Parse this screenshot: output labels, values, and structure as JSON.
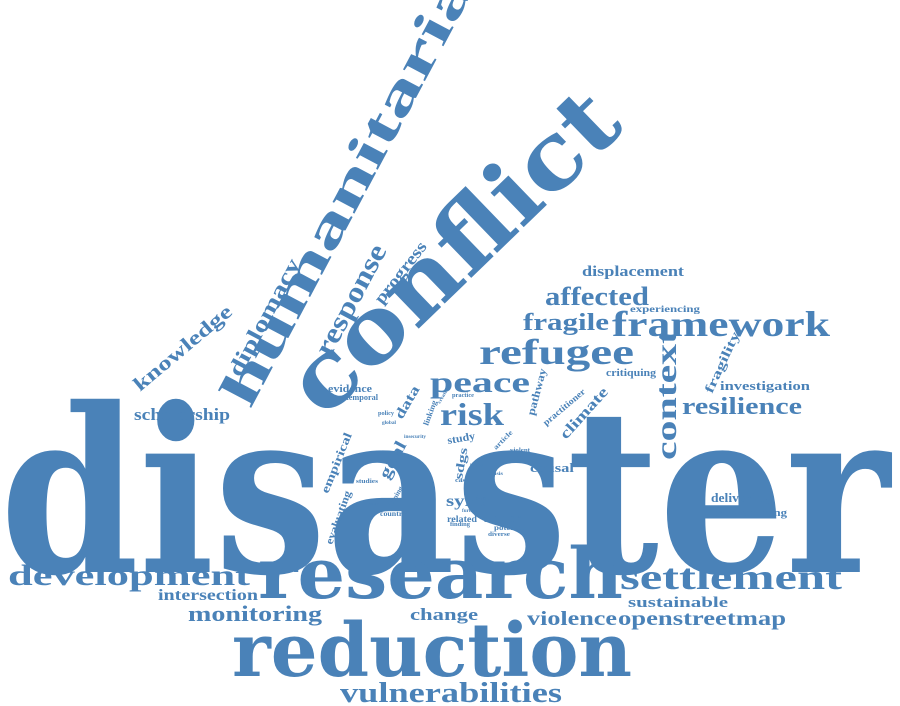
{
  "accent_color": "#4a82b8",
  "words": {
    "disaster": "disaster",
    "conflict": "conflict",
    "humanitarian": "humanitarian",
    "research": "research",
    "reduction": "reduction",
    "framework": "framework",
    "refugee": "refugee",
    "settlement": "settlement",
    "development": "development",
    "vulnerabilities": "vulnerabilities",
    "context": "context",
    "resilience": "resilience",
    "risk": "risk",
    "peace": "peace",
    "affected": "affected",
    "fragile": "fragile",
    "response": "response",
    "diplomacy": "diplomacy",
    "knowledge": "knowledge",
    "progress": "progress",
    "displacement": "displacement",
    "scholarship": "scholarship",
    "monitoring": "monitoring",
    "intersection": "intersection",
    "change": "change",
    "violence": "violence",
    "openstreetmap": "openstreetmap",
    "sustainable": "sustainable",
    "delivering": "delivering",
    "programming": "programming",
    "investigation": "investigation",
    "fragility": "fragility",
    "critiquing": "critiquing",
    "experiencing": "experiencing",
    "climate": "climate",
    "causal": "causal",
    "syria": "syria",
    "unhcr": "unhcr",
    "sdgs": "sdgs",
    "goal": "goal",
    "data": "data",
    "evidence": "evidence",
    "empirical": "empirical",
    "evaluating": "evaluating",
    "pathway": "pathway",
    "study": "study",
    "related": "related",
    "promise": "promise",
    "temporal": "temporal",
    "linking": "linking",
    "practitioner": "practitioner",
    "article": "article",
    "policy": "policy",
    "potential": "potential",
    "countrie": "countrie",
    "joining": "joining",
    "studies": "studies",
    "finding": "finding",
    "diverse": "diverse",
    "case": "case",
    "violent": "violent",
    "practice": "practice",
    "global": "global",
    "utility": "utility",
    "further": "further",
    "creation": "creation",
    "crisis": "crisis",
    "issue": "issue",
    "insecurity": "insecurity",
    "multi": "multi"
  }
}
